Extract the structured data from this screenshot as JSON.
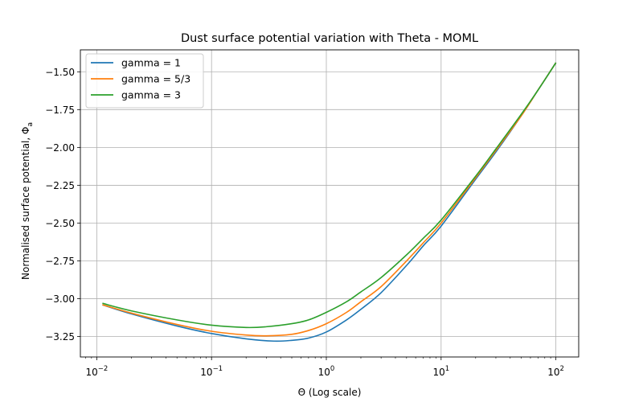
{
  "chart_data": {
    "type": "line",
    "title": "Dust surface potential variation with Theta - MOML",
    "xlabel": "Θ (Log scale)",
    "ylabel": "Normalised surface potential, Φ",
    "ylabel_subscript": "a",
    "xscale": "log",
    "xlim": [
      0.0072,
      158
    ],
    "ylim": [
      -3.385,
      -1.355
    ],
    "grid": true,
    "legend": "top-left",
    "x_ticks": [
      {
        "value": 0.01,
        "base": "10",
        "exp": "−2"
      },
      {
        "value": 0.1,
        "base": "10",
        "exp": "−1"
      },
      {
        "value": 1,
        "base": "10",
        "exp": "0"
      },
      {
        "value": 10,
        "base": "10",
        "exp": "1"
      },
      {
        "value": 100,
        "base": "10",
        "exp": "2"
      }
    ],
    "y_ticks": [
      {
        "value": -1.5,
        "label": "−1.50"
      },
      {
        "value": -1.75,
        "label": "−1.75"
      },
      {
        "value": -2.0,
        "label": "−2.00"
      },
      {
        "value": -2.25,
        "label": "−2.25"
      },
      {
        "value": -2.5,
        "label": "−2.50"
      },
      {
        "value": -2.75,
        "label": "−2.75"
      },
      {
        "value": -3.0,
        "label": "−3.00"
      },
      {
        "value": -3.25,
        "label": "−3.25"
      }
    ],
    "series": [
      {
        "name": "gamma = 1",
        "color": "#1f77b4",
        "x": [
          0.0112,
          0.02,
          0.05,
          0.1,
          0.2,
          0.35,
          0.5,
          0.7,
          1,
          1.5,
          2,
          3,
          5,
          7,
          10,
          20,
          30,
          50,
          70,
          100
        ],
        "y": [
          -3.04,
          -3.1,
          -3.18,
          -3.23,
          -3.265,
          -3.28,
          -3.275,
          -3.26,
          -3.22,
          -3.14,
          -3.07,
          -2.96,
          -2.78,
          -2.65,
          -2.52,
          -2.21,
          -2.03,
          -1.79,
          -1.62,
          -1.44
        ]
      },
      {
        "name": "gamma = 5/3",
        "color": "#ff7f0e",
        "x": [
          0.0112,
          0.02,
          0.05,
          0.1,
          0.2,
          0.3,
          0.5,
          0.7,
          1,
          1.5,
          2,
          3,
          5,
          7,
          10,
          20,
          30,
          50,
          70,
          100
        ],
        "y": [
          -3.04,
          -3.095,
          -3.17,
          -3.215,
          -3.24,
          -3.245,
          -3.235,
          -3.21,
          -3.165,
          -3.09,
          -3.02,
          -2.92,
          -2.75,
          -2.63,
          -2.5,
          -2.2,
          -2.02,
          -1.79,
          -1.62,
          -1.44
        ]
      },
      {
        "name": "gamma = 3",
        "color": "#2ca02c",
        "x": [
          0.0112,
          0.02,
          0.05,
          0.1,
          0.2,
          0.3,
          0.5,
          0.7,
          1,
          1.5,
          2,
          3,
          5,
          7,
          10,
          20,
          30,
          50,
          70,
          100
        ],
        "y": [
          -3.03,
          -3.08,
          -3.14,
          -3.175,
          -3.19,
          -3.185,
          -3.165,
          -3.14,
          -3.09,
          -3.02,
          -2.955,
          -2.86,
          -2.71,
          -2.6,
          -2.48,
          -2.19,
          -2.01,
          -1.78,
          -1.62,
          -1.44
        ]
      }
    ]
  }
}
